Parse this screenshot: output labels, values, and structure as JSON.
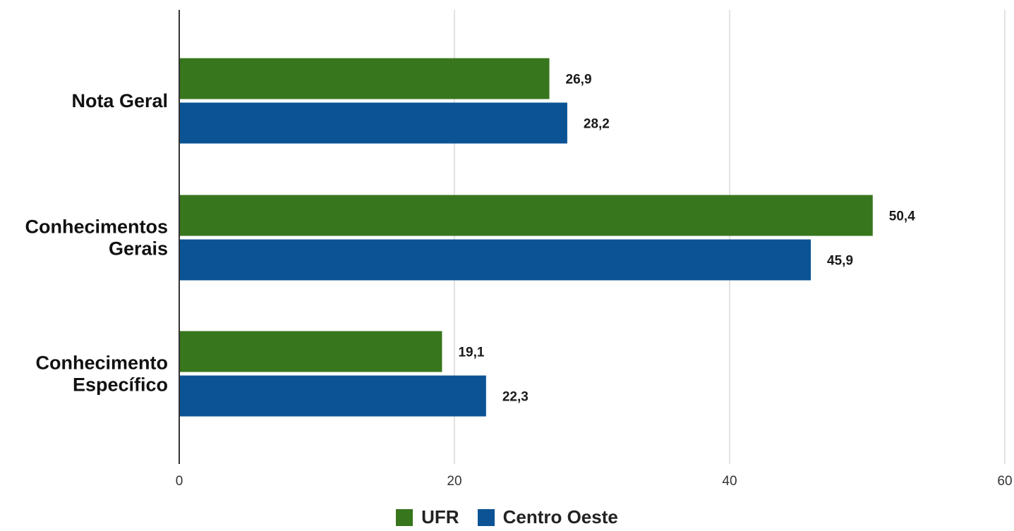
{
  "chart_data": {
    "type": "bar",
    "orientation": "horizontal",
    "categories": [
      [
        "Nota Geral"
      ],
      [
        "Conhecimentos",
        "Gerais"
      ],
      [
        "Conhecimento",
        "Específico"
      ]
    ],
    "series": [
      {
        "name": "UFR",
        "color": "#38761d",
        "values": [
          26.9,
          50.4,
          19.1
        ],
        "labels": [
          "26,9",
          "50,4",
          "19,1"
        ]
      },
      {
        "name": "Centro Oeste",
        "color": "#0b5394",
        "values": [
          28.2,
          45.9,
          22.3
        ],
        "labels": [
          "28,2",
          "45,9",
          "22,3"
        ]
      }
    ],
    "xlim": [
      0,
      60
    ],
    "xticks": [
      0,
      20,
      40,
      60
    ],
    "grid": "vertical",
    "legend_position": "bottom-center"
  }
}
